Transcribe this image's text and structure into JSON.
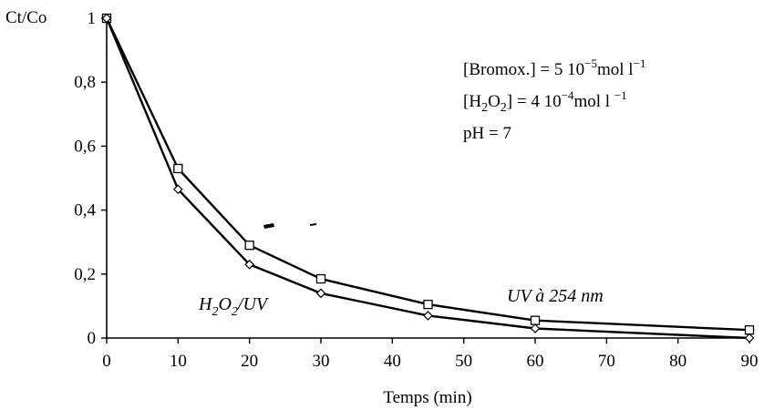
{
  "chart_data": {
    "type": "line",
    "ylabel": "Ct/Co",
    "xlabel": "Temps (min)",
    "xlim": [
      0,
      90
    ],
    "ylim": [
      0,
      1
    ],
    "x_ticks": [
      0,
      10,
      20,
      30,
      40,
      50,
      60,
      70,
      80,
      90
    ],
    "y_ticks": [
      0,
      0.2,
      0.4,
      0.6,
      0.8,
      1
    ],
    "y_tick_labels": [
      "0",
      "0,2",
      "0,4",
      "0,6",
      "0,8",
      "1"
    ],
    "grid": false,
    "series": [
      {
        "name": "UV à 254 nm",
        "marker": "square",
        "x": [
          0,
          10,
          20,
          30,
          45,
          60,
          90
        ],
        "y": [
          1.0,
          0.53,
          0.29,
          0.185,
          0.105,
          0.055,
          0.025
        ]
      },
      {
        "name": "H2O2/UV",
        "marker": "diamond",
        "x": [
          0,
          10,
          20,
          30,
          45,
          60,
          90
        ],
        "y": [
          1.0,
          0.465,
          0.23,
          0.14,
          0.07,
          0.03,
          0.0
        ]
      }
    ],
    "annotations": {
      "bromox": {
        "prefix": "[Bromox.] = 5 10",
        "exp": "−5",
        "unit": "mol l",
        "unit_exp": "−1"
      },
      "h2o2": {
        "lb": "[H",
        "sub1": "2",
        "mid": "O",
        "sub2": "2",
        "rb": "] = 4 10",
        "exp": "−4",
        "unit": "mol l ",
        "unit_exp": "−1"
      },
      "ph": "pH = 7",
      "label_h2o2uv": {
        "a": "H",
        "sub1": "2",
        "b": "O",
        "sub2": "2",
        "c": "/UV"
      },
      "label_uv": "UV à 254 nm"
    }
  }
}
